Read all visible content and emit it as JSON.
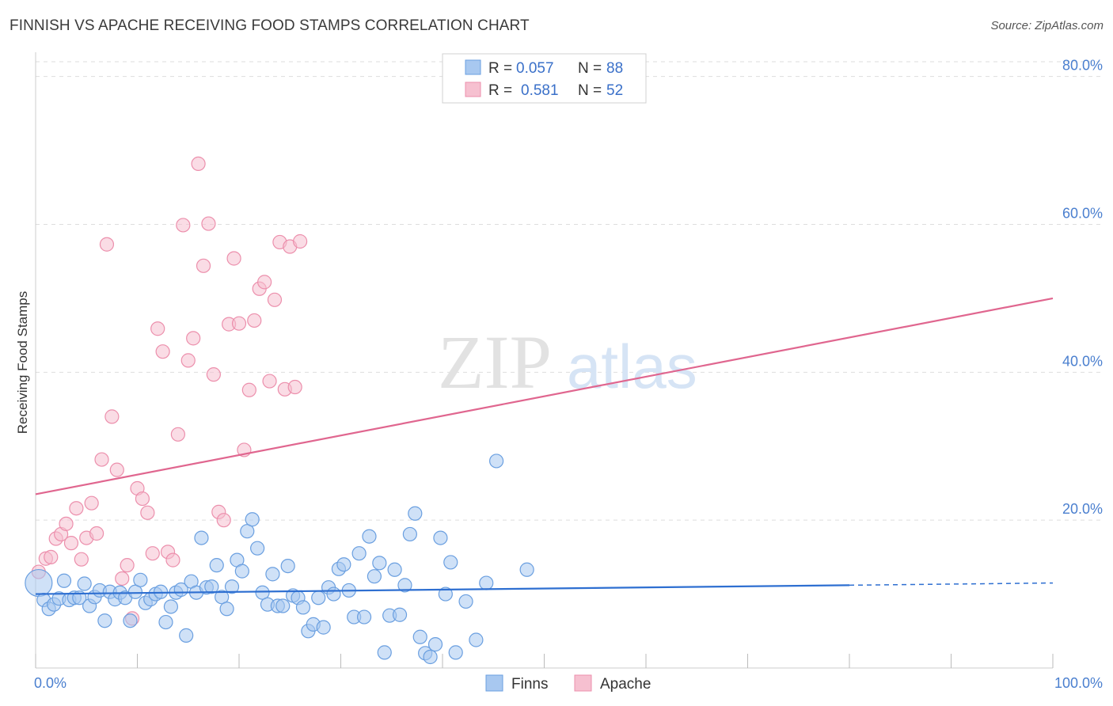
{
  "title": "FINNISH VS APACHE RECEIVING FOOD STAMPS CORRELATION CHART",
  "source": "Source: ZipAtlas.com",
  "watermark": {
    "zip": "ZIP",
    "atlas": "atlas"
  },
  "colors": {
    "finns_fill": "#a8c8f0",
    "finns_stroke": "#6a9fe0",
    "finns_line": "#2e6fd1",
    "apache_fill": "#f6c0d0",
    "apache_stroke": "#ec8fac",
    "apache_line": "#e0668f",
    "axis_text": "#4a7fcf",
    "grid": "#dddddd"
  },
  "legend": {
    "rows": [
      {
        "r_label": "R =",
        "r_value": "0.057",
        "n_label": "N =",
        "n_value": "88"
      },
      {
        "r_label": "R =",
        "r_value": "0.581",
        "n_label": "N =",
        "n_value": "52"
      }
    ]
  },
  "bottom_legend": [
    "Finns",
    "Apache"
  ],
  "chart_data": {
    "type": "scatter",
    "title": "FINNISH VS APACHE RECEIVING FOOD STAMPS CORRELATION CHART",
    "xlabel": "",
    "ylabel": "Receiving Food Stamps",
    "xlim": [
      0,
      100
    ],
    "ylim": [
      0,
      82
    ],
    "x_tick_labels": [
      "0.0%",
      "100.0%"
    ],
    "y_ticks": [
      20,
      40,
      60,
      80
    ],
    "y_tick_labels": [
      "20.0%",
      "40.0%",
      "60.0%",
      "80.0%"
    ],
    "grid": true,
    "series": [
      {
        "name": "Finns",
        "r": 0.057,
        "n": 88,
        "trend": {
          "x0": 0,
          "y0": 10.0,
          "x1": 80,
          "y1": 11.2,
          "dash_to_x": 100,
          "dash_to_y": 11.5
        },
        "points": [
          [
            0.3,
            11.5
          ],
          [
            0.8,
            9.2
          ],
          [
            1.3,
            8.0
          ],
          [
            1.8,
            8.6
          ],
          [
            2.3,
            9.4
          ],
          [
            2.8,
            11.8
          ],
          [
            3.3,
            9.2
          ],
          [
            3.8,
            9.5
          ],
          [
            4.3,
            9.5
          ],
          [
            4.8,
            11.4
          ],
          [
            5.3,
            8.4
          ],
          [
            5.8,
            9.6
          ],
          [
            6.3,
            10.5
          ],
          [
            6.8,
            6.4
          ],
          [
            7.3,
            10.3
          ],
          [
            7.8,
            9.3
          ],
          [
            8.3,
            10.2
          ],
          [
            8.8,
            9.5
          ],
          [
            9.3,
            6.4
          ],
          [
            9.8,
            10.3
          ],
          [
            10.3,
            11.9
          ],
          [
            10.8,
            8.8
          ],
          [
            11.3,
            9.3
          ],
          [
            11.8,
            10.0
          ],
          [
            12.3,
            10.3
          ],
          [
            12.8,
            6.2
          ],
          [
            13.3,
            8.3
          ],
          [
            13.8,
            10.2
          ],
          [
            14.3,
            10.6
          ],
          [
            14.8,
            4.4
          ],
          [
            15.3,
            11.7
          ],
          [
            15.8,
            10.2
          ],
          [
            16.3,
            17.6
          ],
          [
            16.8,
            10.9
          ],
          [
            17.3,
            11.0
          ],
          [
            17.8,
            13.9
          ],
          [
            18.3,
            9.6
          ],
          [
            18.8,
            8.0
          ],
          [
            19.3,
            11.0
          ],
          [
            19.8,
            14.6
          ],
          [
            20.3,
            13.1
          ],
          [
            20.8,
            18.5
          ],
          [
            21.3,
            20.1
          ],
          [
            21.8,
            16.2
          ],
          [
            22.3,
            10.2
          ],
          [
            22.8,
            8.6
          ],
          [
            23.3,
            12.7
          ],
          [
            23.8,
            8.4
          ],
          [
            24.3,
            8.4
          ],
          [
            24.8,
            13.8
          ],
          [
            25.3,
            9.8
          ],
          [
            25.8,
            9.5
          ],
          [
            26.3,
            8.2
          ],
          [
            26.8,
            5.0
          ],
          [
            27.3,
            5.9
          ],
          [
            27.8,
            9.5
          ],
          [
            28.3,
            5.5
          ],
          [
            28.8,
            10.9
          ],
          [
            29.3,
            10.0
          ],
          [
            29.8,
            13.4
          ],
          [
            30.3,
            14.0
          ],
          [
            30.8,
            10.5
          ],
          [
            31.3,
            6.9
          ],
          [
            31.8,
            15.5
          ],
          [
            32.3,
            6.9
          ],
          [
            32.8,
            17.8
          ],
          [
            33.3,
            12.4
          ],
          [
            33.8,
            14.2
          ],
          [
            34.3,
            2.1
          ],
          [
            34.8,
            7.1
          ],
          [
            35.3,
            13.3
          ],
          [
            35.8,
            7.2
          ],
          [
            36.3,
            11.2
          ],
          [
            36.8,
            18.1
          ],
          [
            37.3,
            20.9
          ],
          [
            37.8,
            4.2
          ],
          [
            38.3,
            2.0
          ],
          [
            38.8,
            1.5
          ],
          [
            39.3,
            3.2
          ],
          [
            39.8,
            17.6
          ],
          [
            40.3,
            10.0
          ],
          [
            40.8,
            14.3
          ],
          [
            41.3,
            2.1
          ],
          [
            42.3,
            9.0
          ],
          [
            43.3,
            3.8
          ],
          [
            44.3,
            11.5
          ],
          [
            45.3,
            28.0
          ],
          [
            48.3,
            13.3
          ]
        ]
      },
      {
        "name": "Apache",
        "r": 0.581,
        "n": 52,
        "trend": {
          "x0": 0,
          "y0": 23.5,
          "x1": 100,
          "y1": 50.0
        },
        "points": [
          [
            0.3,
            13.0
          ],
          [
            1.0,
            14.8
          ],
          [
            1.5,
            15.0
          ],
          [
            2.0,
            17.5
          ],
          [
            2.5,
            18.1
          ],
          [
            3.0,
            19.5
          ],
          [
            3.5,
            16.9
          ],
          [
            4.0,
            21.6
          ],
          [
            4.5,
            14.7
          ],
          [
            5.0,
            17.6
          ],
          [
            5.5,
            22.3
          ],
          [
            6.0,
            18.2
          ],
          [
            6.5,
            28.2
          ],
          [
            7.0,
            57.3
          ],
          [
            7.5,
            34.0
          ],
          [
            8.0,
            26.8
          ],
          [
            8.5,
            12.1
          ],
          [
            9.0,
            13.9
          ],
          [
            9.5,
            6.7
          ],
          [
            10.0,
            24.3
          ],
          [
            10.5,
            22.9
          ],
          [
            11.0,
            21.0
          ],
          [
            11.5,
            15.5
          ],
          [
            12.0,
            45.9
          ],
          [
            12.5,
            42.8
          ],
          [
            13.0,
            15.7
          ],
          [
            13.5,
            14.6
          ],
          [
            14.0,
            31.6
          ],
          [
            14.5,
            59.9
          ],
          [
            15.0,
            41.6
          ],
          [
            15.5,
            44.6
          ],
          [
            16.0,
            68.2
          ],
          [
            16.5,
            54.4
          ],
          [
            17.0,
            60.1
          ],
          [
            17.5,
            39.7
          ],
          [
            18.0,
            21.1
          ],
          [
            18.5,
            20.0
          ],
          [
            19.0,
            46.5
          ],
          [
            19.5,
            55.4
          ],
          [
            20.0,
            46.6
          ],
          [
            20.5,
            29.5
          ],
          [
            21.0,
            37.6
          ],
          [
            21.5,
            47.0
          ],
          [
            22.0,
            51.3
          ],
          [
            22.5,
            52.2
          ],
          [
            23.0,
            38.8
          ],
          [
            23.5,
            49.8
          ],
          [
            24.0,
            57.6
          ],
          [
            24.5,
            37.7
          ],
          [
            25.0,
            57.0
          ],
          [
            25.5,
            38.0
          ],
          [
            26.0,
            57.7
          ]
        ]
      }
    ]
  }
}
